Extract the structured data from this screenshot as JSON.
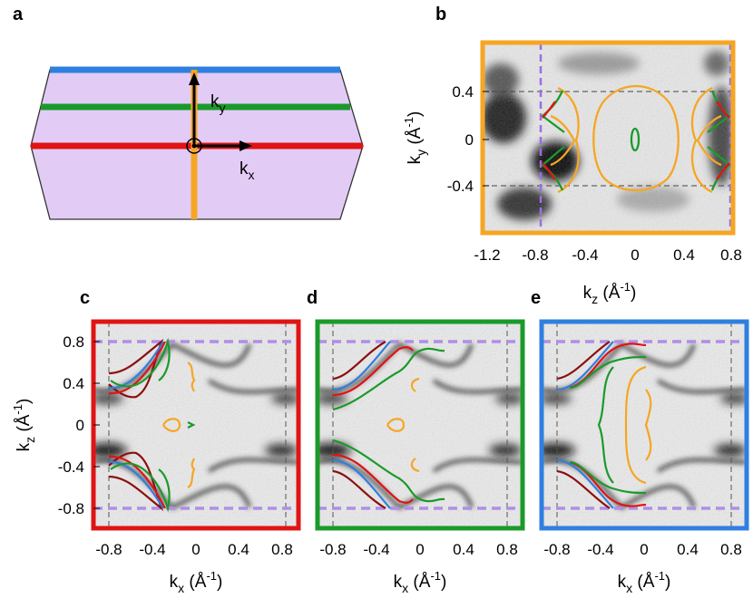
{
  "figure": {
    "panel_labels": [
      "a",
      "b",
      "c",
      "d",
      "e"
    ],
    "colors": {
      "red": "#e01414",
      "green": "#1a9a2a",
      "blue": "#2f7fe0",
      "orange": "#f5a623",
      "lilac": "#e2ccf5",
      "dark_red": "#8b1010",
      "purple_dash": "#b08ee8"
    }
  },
  "panel_a": {
    "axis_ky": "k",
    "axis_ky_sub": "y",
    "axis_kx": "k",
    "axis_kx_sub": "x"
  },
  "panel_b": {
    "ylabel_main": "k",
    "ylabel_sub": "y",
    "ylabel_unit": " (Å",
    "ylabel_exp": "-1",
    "ylabel_close": ")",
    "xlabel_main": "k",
    "xlabel_sub": "z",
    "xlabel_unit": " (Å",
    "xlabel_exp": "-1",
    "xlabel_close": ")",
    "yticks": [
      "0.4",
      "0",
      "-0.4"
    ],
    "xticks": [
      "-1.2",
      "-0.8",
      "-0.4",
      "0",
      "0.4",
      "0.8"
    ]
  },
  "panel_cde": {
    "ylabel_main": "k",
    "ylabel_sub": "z",
    "ylabel_unit": " (Å",
    "ylabel_exp": "-1",
    "ylabel_close": ")",
    "xlabel_main": "k",
    "xlabel_sub": "x",
    "xlabel_unit": " (Å",
    "xlabel_exp": "-1",
    "xlabel_close": ")",
    "yticks": [
      "0.8",
      "0.4",
      "0",
      "-0.4",
      "-0.8"
    ],
    "xticks": [
      "-0.8",
      "-0.4",
      "0",
      "0.4",
      "0.8"
    ]
  }
}
